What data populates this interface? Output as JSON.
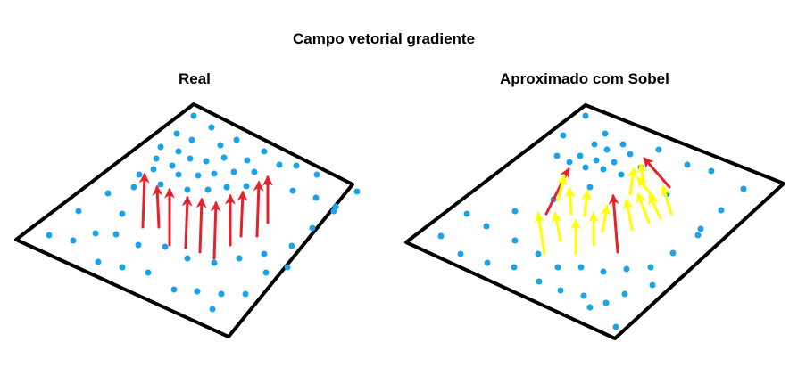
{
  "title": "Campo vetorial gradiente",
  "panels": [
    {
      "label": "Real",
      "arrow_color": "#e8202a"
    },
    {
      "label": "Aproximado com Sobel",
      "arrow_colors": [
        "#ffff00",
        "#e8202a"
      ]
    }
  ],
  "colors": {
    "plane_stroke": "#000000",
    "dot": "#1aa3e8",
    "red_arrow": "#e8202a",
    "yellow_arrow": "#ffff00"
  }
}
